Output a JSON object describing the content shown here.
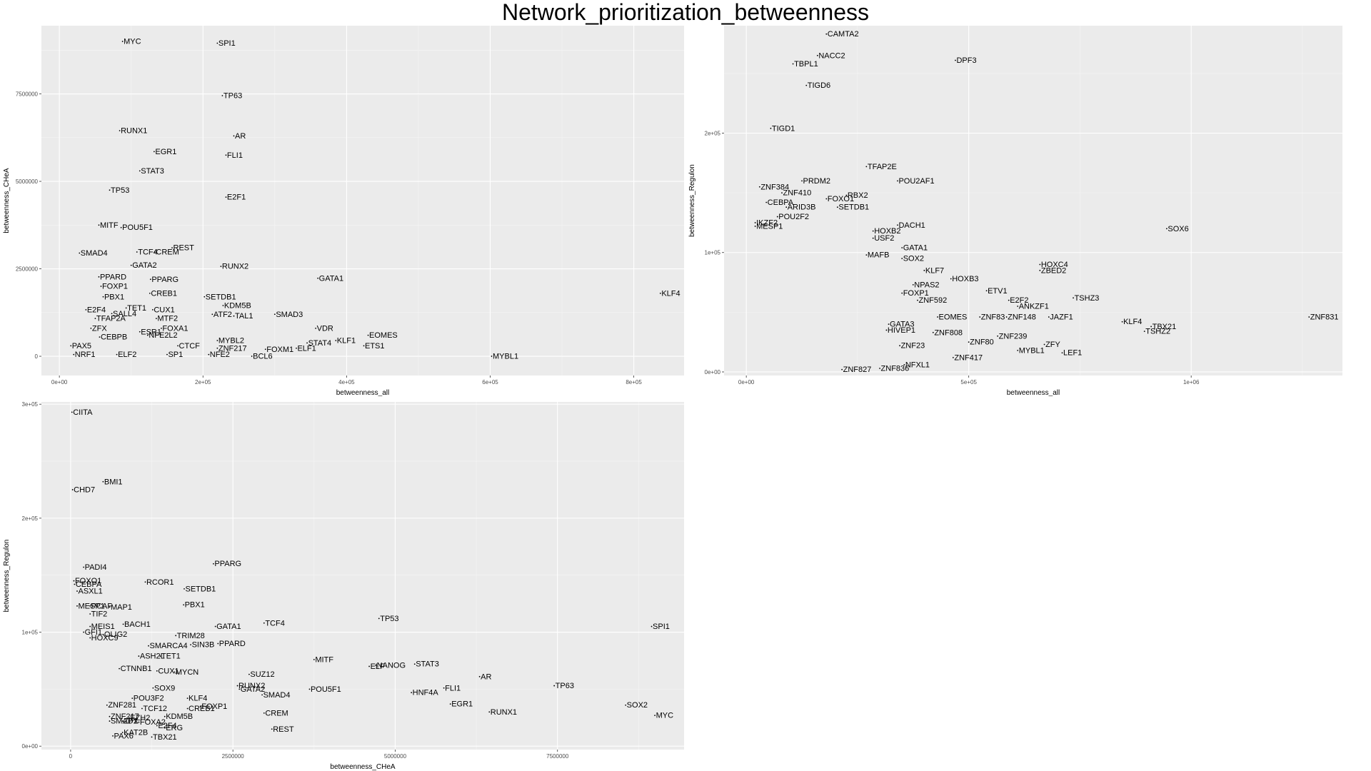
{
  "page_title": "Network_prioritization_betweenness",
  "chart_data": [
    {
      "type": "scatter",
      "title": "",
      "xlabel": "betweenness_all",
      "ylabel": "betweenness_CHeA",
      "xlim": [
        -25000,
        870000
      ],
      "ylim": [
        -550000,
        9450000
      ],
      "x_ticks": [
        0,
        200000,
        400000,
        600000,
        800000
      ],
      "x_tick_labels": [
        "0e+00",
        "2e+05",
        "4e+05",
        "6e+05",
        "8e+05"
      ],
      "y_ticks": [
        0,
        2500000,
        5000000,
        7500000
      ],
      "y_tick_labels": [
        "0",
        "2500000",
        "5000000",
        "7500000"
      ],
      "grid": true,
      "points": [
        {
          "label": "MYC",
          "x": 88000,
          "y": 9000000
        },
        {
          "label": "SPI1",
          "x": 220000,
          "y": 8950000
        },
        {
          "label": "TP63",
          "x": 227000,
          "y": 7450000
        },
        {
          "label": "RUNX1",
          "x": 84000,
          "y": 6450000
        },
        {
          "label": "AR",
          "x": 243000,
          "y": 6300000
        },
        {
          "label": "EGR1",
          "x": 132000,
          "y": 5850000
        },
        {
          "label": "FLI1",
          "x": 232000,
          "y": 5750000
        },
        {
          "label": "STAT3",
          "x": 112000,
          "y": 5300000
        },
        {
          "label": "TP53",
          "x": 70000,
          "y": 4750000
        },
        {
          "label": "E2F1",
          "x": 232000,
          "y": 4550000
        },
        {
          "label": "MITF",
          "x": 55000,
          "y": 3750000
        },
        {
          "label": "POU5F1",
          "x": 86000,
          "y": 3680000
        },
        {
          "label": "REST",
          "x": 157000,
          "y": 3100000
        },
        {
          "label": "TCF4",
          "x": 108000,
          "y": 2980000
        },
        {
          "label": "CREM",
          "x": 133000,
          "y": 2980000
        },
        {
          "label": "SMAD4",
          "x": 28000,
          "y": 2950000
        },
        {
          "label": "GATA2",
          "x": 100000,
          "y": 2600000
        },
        {
          "label": "RUNX2",
          "x": 225000,
          "y": 2570000
        },
        {
          "label": "PPARD",
          "x": 55000,
          "y": 2270000
        },
        {
          "label": "PPARG",
          "x": 127000,
          "y": 2200000
        },
        {
          "label": "GATA1",
          "x": 360000,
          "y": 2230000
        },
        {
          "label": "FOXP1",
          "x": 58000,
          "y": 2000000
        },
        {
          "label": "CREB1",
          "x": 126000,
          "y": 1800000
        },
        {
          "label": "KLF4",
          "x": 837000,
          "y": 1800000
        },
        {
          "label": "PBX1",
          "x": 61000,
          "y": 1700000
        },
        {
          "label": "SETDB1",
          "x": 202000,
          "y": 1700000
        },
        {
          "label": "KDM5B",
          "x": 228000,
          "y": 1450000
        },
        {
          "label": "E2F4",
          "x": 37000,
          "y": 1330000
        },
        {
          "label": "TET1",
          "x": 93000,
          "y": 1380000
        },
        {
          "label": "CUX1",
          "x": 130000,
          "y": 1330000
        },
        {
          "label": "SALL4",
          "x": 73000,
          "y": 1220000
        },
        {
          "label": "TFAP2A",
          "x": 50000,
          "y": 1080000
        },
        {
          "label": "MTF2",
          "x": 135000,
          "y": 1080000
        },
        {
          "label": "ATF2",
          "x": 213000,
          "y": 1200000
        },
        {
          "label": "TAL1",
          "x": 243000,
          "y": 1150000
        },
        {
          "label": "SMAD3",
          "x": 300000,
          "y": 1200000
        },
        {
          "label": "ZFX",
          "x": 44000,
          "y": 800000
        },
        {
          "label": "FOXA1",
          "x": 142000,
          "y": 800000
        },
        {
          "label": "VDR",
          "x": 357000,
          "y": 800000
        },
        {
          "label": "ESR1",
          "x": 112000,
          "y": 700000
        },
        {
          "label": "NFE2L2",
          "x": 123000,
          "y": 600000
        },
        {
          "label": "EOMES",
          "x": 430000,
          "y": 600000
        },
        {
          "label": "CEBPB",
          "x": 56000,
          "y": 550000
        },
        {
          "label": "MYBL2",
          "x": 220000,
          "y": 450000
        },
        {
          "label": "STAT4",
          "x": 345000,
          "y": 380000
        },
        {
          "label": "KLF1",
          "x": 385000,
          "y": 450000
        },
        {
          "label": "ETS1",
          "x": 424000,
          "y": 300000
        },
        {
          "label": "PAX5",
          "x": 16000,
          "y": 300000
        },
        {
          "label": "CTCF",
          "x": 165000,
          "y": 300000
        },
        {
          "label": "ZNF217",
          "x": 220000,
          "y": 230000
        },
        {
          "label": "FOXM1",
          "x": 287000,
          "y": 200000
        },
        {
          "label": "ELF1",
          "x": 330000,
          "y": 230000
        },
        {
          "label": "NFE2",
          "x": 208000,
          "y": 50000
        },
        {
          "label": "BCL6",
          "x": 268000,
          "y": 0
        },
        {
          "label": "MYBL1",
          "x": 602000,
          "y": 0
        },
        {
          "label": "NRF1",
          "x": 20000,
          "y": 50000
        },
        {
          "label": "ELF2",
          "x": 80000,
          "y": 50000
        },
        {
          "label": "SP1",
          "x": 150000,
          "y": 50000
        }
      ]
    },
    {
      "type": "scatter",
      "title": "",
      "xlabel": "betweenness_all",
      "ylabel": "betweenness_Regulon",
      "xlim": [
        -50000,
        1340000
      ],
      "ylim": [
        -3000,
        290000
      ],
      "x_ticks": [
        0,
        500000,
        1000000
      ],
      "x_tick_labels": [
        "0e+00",
        "5e+05",
        "1e+06"
      ],
      "y_ticks": [
        0,
        100000,
        200000
      ],
      "y_tick_labels": [
        "0e+00",
        "1e+05",
        "2e+05"
      ],
      "grid": true,
      "points": [
        {
          "label": "CAMTA2",
          "x": 180000,
          "y": 283000
        },
        {
          "label": "NACC2",
          "x": 160000,
          "y": 265000
        },
        {
          "label": "TBPL1",
          "x": 105000,
          "y": 258000
        },
        {
          "label": "DPF3",
          "x": 470000,
          "y": 261000
        },
        {
          "label": "TIGD6",
          "x": 135000,
          "y": 240000
        },
        {
          "label": "TIGD1",
          "x": 55000,
          "y": 204000
        },
        {
          "label": "TFAP2E",
          "x": 270000,
          "y": 172000
        },
        {
          "label": "POU2AF1",
          "x": 340000,
          "y": 160000
        },
        {
          "label": "PRDM2",
          "x": 125000,
          "y": 160000
        },
        {
          "label": "ZNF384",
          "x": 30000,
          "y": 155000
        },
        {
          "label": "ZNF410",
          "x": 80000,
          "y": 150000
        },
        {
          "label": "RBX2",
          "x": 225000,
          "y": 148000
        },
        {
          "label": "FOXO1",
          "x": 180000,
          "y": 145000
        },
        {
          "label": "SETDB1",
          "x": 205000,
          "y": 138000
        },
        {
          "label": "ARID3B",
          "x": 90000,
          "y": 138000
        },
        {
          "label": "POU2F2",
          "x": 70000,
          "y": 130000
        },
        {
          "label": "DACH1",
          "x": 340000,
          "y": 123000
        },
        {
          "label": "SOX6",
          "x": 945000,
          "y": 120000
        },
        {
          "label": "HOXB2",
          "x": 285000,
          "y": 118000
        },
        {
          "label": "USF2",
          "x": 285000,
          "y": 112000
        },
        {
          "label": "GATA1",
          "x": 350000,
          "y": 104000
        },
        {
          "label": "MAFB",
          "x": 270000,
          "y": 98000
        },
        {
          "label": "SOX2",
          "x": 350000,
          "y": 95000
        },
        {
          "label": "HOXC4",
          "x": 660000,
          "y": 90000
        },
        {
          "label": "ZBED2",
          "x": 660000,
          "y": 85000
        },
        {
          "label": "KLF7",
          "x": 400000,
          "y": 85000
        },
        {
          "label": "HOXB3",
          "x": 460000,
          "y": 78000
        },
        {
          "label": "NPAS2",
          "x": 375000,
          "y": 73000
        },
        {
          "label": "ETV1",
          "x": 540000,
          "y": 68000
        },
        {
          "label": "TSHZ3",
          "x": 735000,
          "y": 62000
        },
        {
          "label": "E2F2",
          "x": 590000,
          "y": 60000
        },
        {
          "label": "ANKZF1",
          "x": 610000,
          "y": 55000
        },
        {
          "label": "ZNF592",
          "x": 385000,
          "y": 60000
        },
        {
          "label": "EOMES",
          "x": 430000,
          "y": 46000
        },
        {
          "label": "ZNF83",
          "x": 525000,
          "y": 46000
        },
        {
          "label": "ZNF148",
          "x": 585000,
          "y": 46000
        },
        {
          "label": "JAZF1",
          "x": 680000,
          "y": 46000
        },
        {
          "label": "ZNF831",
          "x": 1265000,
          "y": 46000
        },
        {
          "label": "KLF4",
          "x": 845000,
          "y": 42000
        },
        {
          "label": "TBX21",
          "x": 910000,
          "y": 38000
        },
        {
          "label": "TSHZ2",
          "x": 895000,
          "y": 34000
        },
        {
          "label": "ZNF808",
          "x": 420000,
          "y": 33000
        },
        {
          "label": "ZNF239",
          "x": 565000,
          "y": 30000
        },
        {
          "label": "ZNF80",
          "x": 500000,
          "y": 25000
        },
        {
          "label": "ZFY",
          "x": 670000,
          "y": 23000
        },
        {
          "label": "MYBL1",
          "x": 610000,
          "y": 18000
        },
        {
          "label": "LEF1",
          "x": 710000,
          "y": 16000
        },
        {
          "label": "ZNF417",
          "x": 465000,
          "y": 12000
        },
        {
          "label": "NFXL1",
          "x": 355000,
          "y": 6000
        },
        {
          "label": "ZNF836",
          "x": 300000,
          "y": 3000
        },
        {
          "label": "ZNF827",
          "x": 215000,
          "y": 2000
        },
        {
          "label": "CEBPA",
          "x": 45000,
          "y": 142000
        },
        {
          "label": "IKZF2",
          "x": 20000,
          "y": 125000
        },
        {
          "label": "MESP1",
          "x": 20000,
          "y": 122000
        },
        {
          "label": "HIVEP1",
          "x": 315000,
          "y": 35000
        },
        {
          "label": "FOXP1",
          "x": 350000,
          "y": 66000
        },
        {
          "label": "GATA3",
          "x": 320000,
          "y": 40000
        },
        {
          "label": "ZNF23",
          "x": 345000,
          "y": 22000
        }
      ]
    },
    {
      "type": "scatter",
      "title": "",
      "xlabel": "betweenness_CHeA",
      "ylabel": "betweenness_Regulon",
      "xlim": [
        -450000,
        9450000
      ],
      "ylim": [
        -3000,
        302000
      ],
      "x_ticks": [
        0,
        2500000,
        5000000,
        7500000
      ],
      "x_tick_labels": [
        "0",
        "2500000",
        "5000000",
        "7500000"
      ],
      "y_ticks": [
        0,
        100000,
        200000,
        300000
      ],
      "y_tick_labels": [
        "0e+00",
        "1e+05",
        "2e+05",
        "3e+05"
      ],
      "grid": true,
      "points": [
        {
          "label": "CIITA",
          "x": 20000,
          "y": 293000
        },
        {
          "label": "BMI1",
          "x": 500000,
          "y": 232000
        },
        {
          "label": "CHD7",
          "x": 30000,
          "y": 225000
        },
        {
          "label": "PPARG",
          "x": 2200000,
          "y": 160000
        },
        {
          "label": "PADI4",
          "x": 200000,
          "y": 157000
        },
        {
          "label": "FOXO1",
          "x": 50000,
          "y": 145000
        },
        {
          "label": "RCOR1",
          "x": 1150000,
          "y": 144000
        },
        {
          "label": "CEBPA",
          "x": 60000,
          "y": 142000
        },
        {
          "label": "SETDB1",
          "x": 1750000,
          "y": 138000
        },
        {
          "label": "ASXL1",
          "x": 100000,
          "y": 136000
        },
        {
          "label": "PBX1",
          "x": 1740000,
          "y": 124000
        },
        {
          "label": "MESP1",
          "x": 100000,
          "y": 123000
        },
        {
          "label": "PCAF",
          "x": 300000,
          "y": 123000
        },
        {
          "label": "MAP1",
          "x": 600000,
          "y": 122000
        },
        {
          "label": "TIF2",
          "x": 300000,
          "y": 116000
        },
        {
          "label": "TP53",
          "x": 4750000,
          "y": 112000
        },
        {
          "label": "TCF4",
          "x": 2980000,
          "y": 108000
        },
        {
          "label": "GATA1",
          "x": 2230000,
          "y": 105000
        },
        {
          "label": "SPI1",
          "x": 8950000,
          "y": 105000
        },
        {
          "label": "BACH1",
          "x": 810000,
          "y": 107000
        },
        {
          "label": "MEIS1",
          "x": 300000,
          "y": 105000
        },
        {
          "label": "OLIG2",
          "x": 500000,
          "y": 98000
        },
        {
          "label": "TRIM28",
          "x": 1620000,
          "y": 97000
        },
        {
          "label": "SIN3B",
          "x": 1850000,
          "y": 89000
        },
        {
          "label": "PPARD",
          "x": 2270000,
          "y": 90000
        },
        {
          "label": "SMARCA4",
          "x": 1200000,
          "y": 88000
        },
        {
          "label": "ASH2L",
          "x": 1050000,
          "y": 79000
        },
        {
          "label": "TET1",
          "x": 1380000,
          "y": 79000
        },
        {
          "label": "MITF",
          "x": 3750000,
          "y": 76000
        },
        {
          "label": "NANOG",
          "x": 4700000,
          "y": 71000
        },
        {
          "label": "ELF",
          "x": 4600000,
          "y": 70000
        },
        {
          "label": "STAT3",
          "x": 5300000,
          "y": 72000
        },
        {
          "label": "CTNNB1",
          "x": 750000,
          "y": 68000
        },
        {
          "label": "CUX1",
          "x": 1330000,
          "y": 66000
        },
        {
          "label": "SUZ12",
          "x": 2750000,
          "y": 63000
        },
        {
          "label": "AR",
          "x": 6300000,
          "y": 61000
        },
        {
          "label": "RUNX2",
          "x": 2570000,
          "y": 53000
        },
        {
          "label": "TP63",
          "x": 7450000,
          "y": 53000
        },
        {
          "label": "POU5F1",
          "x": 3680000,
          "y": 50000
        },
        {
          "label": "FLI1",
          "x": 5750000,
          "y": 51000
        },
        {
          "label": "GATA2",
          "x": 2600000,
          "y": 50000
        },
        {
          "label": "SOX9",
          "x": 1270000,
          "y": 51000
        },
        {
          "label": "HNF4A",
          "x": 5250000,
          "y": 47000
        },
        {
          "label": "SMAD4",
          "x": 2950000,
          "y": 45000
        },
        {
          "label": "KLF4",
          "x": 1800000,
          "y": 42000
        },
        {
          "label": "POU3F2",
          "x": 950000,
          "y": 42000
        },
        {
          "label": "EGR1",
          "x": 5850000,
          "y": 37000
        },
        {
          "label": "SOX2",
          "x": 8550000,
          "y": 36000
        },
        {
          "label": "ZNF281",
          "x": 560000,
          "y": 36000
        },
        {
          "label": "FOXP1",
          "x": 2000000,
          "y": 35000
        },
        {
          "label": "CREB1",
          "x": 1800000,
          "y": 33000
        },
        {
          "label": "TCF12",
          "x": 1100000,
          "y": 33000
        },
        {
          "label": "MYC",
          "x": 9000000,
          "y": 27000
        },
        {
          "label": "RUNX1",
          "x": 6450000,
          "y": 30000
        },
        {
          "label": "CREM",
          "x": 2980000,
          "y": 29000
        },
        {
          "label": "KDM5B",
          "x": 1450000,
          "y": 26000
        },
        {
          "label": "ZNF217",
          "x": 600000,
          "y": 26000
        },
        {
          "label": "EZH2",
          "x": 900000,
          "y": 25000
        },
        {
          "label": "E2F4",
          "x": 1330000,
          "y": 18000
        },
        {
          "label": "ERG",
          "x": 1450000,
          "y": 16000
        },
        {
          "label": "REST",
          "x": 3100000,
          "y": 15000
        },
        {
          "label": "SMAD1",
          "x": 600000,
          "y": 22000
        },
        {
          "label": "PAX6",
          "x": 650000,
          "y": 9000
        },
        {
          "label": "KAT2B",
          "x": 800000,
          "y": 12000
        },
        {
          "label": "ZFX",
          "x": 800000,
          "y": 22000
        },
        {
          "label": "TBX21",
          "x": 1250000,
          "y": 8000
        },
        {
          "label": "GFI1",
          "x": 200000,
          "y": 100000
        },
        {
          "label": "HOXC9",
          "x": 300000,
          "y": 95000
        },
        {
          "label": "MYCN",
          "x": 1600000,
          "y": 65000
        },
        {
          "label": "FOXA2",
          "x": 1050000,
          "y": 21000
        }
      ]
    }
  ]
}
